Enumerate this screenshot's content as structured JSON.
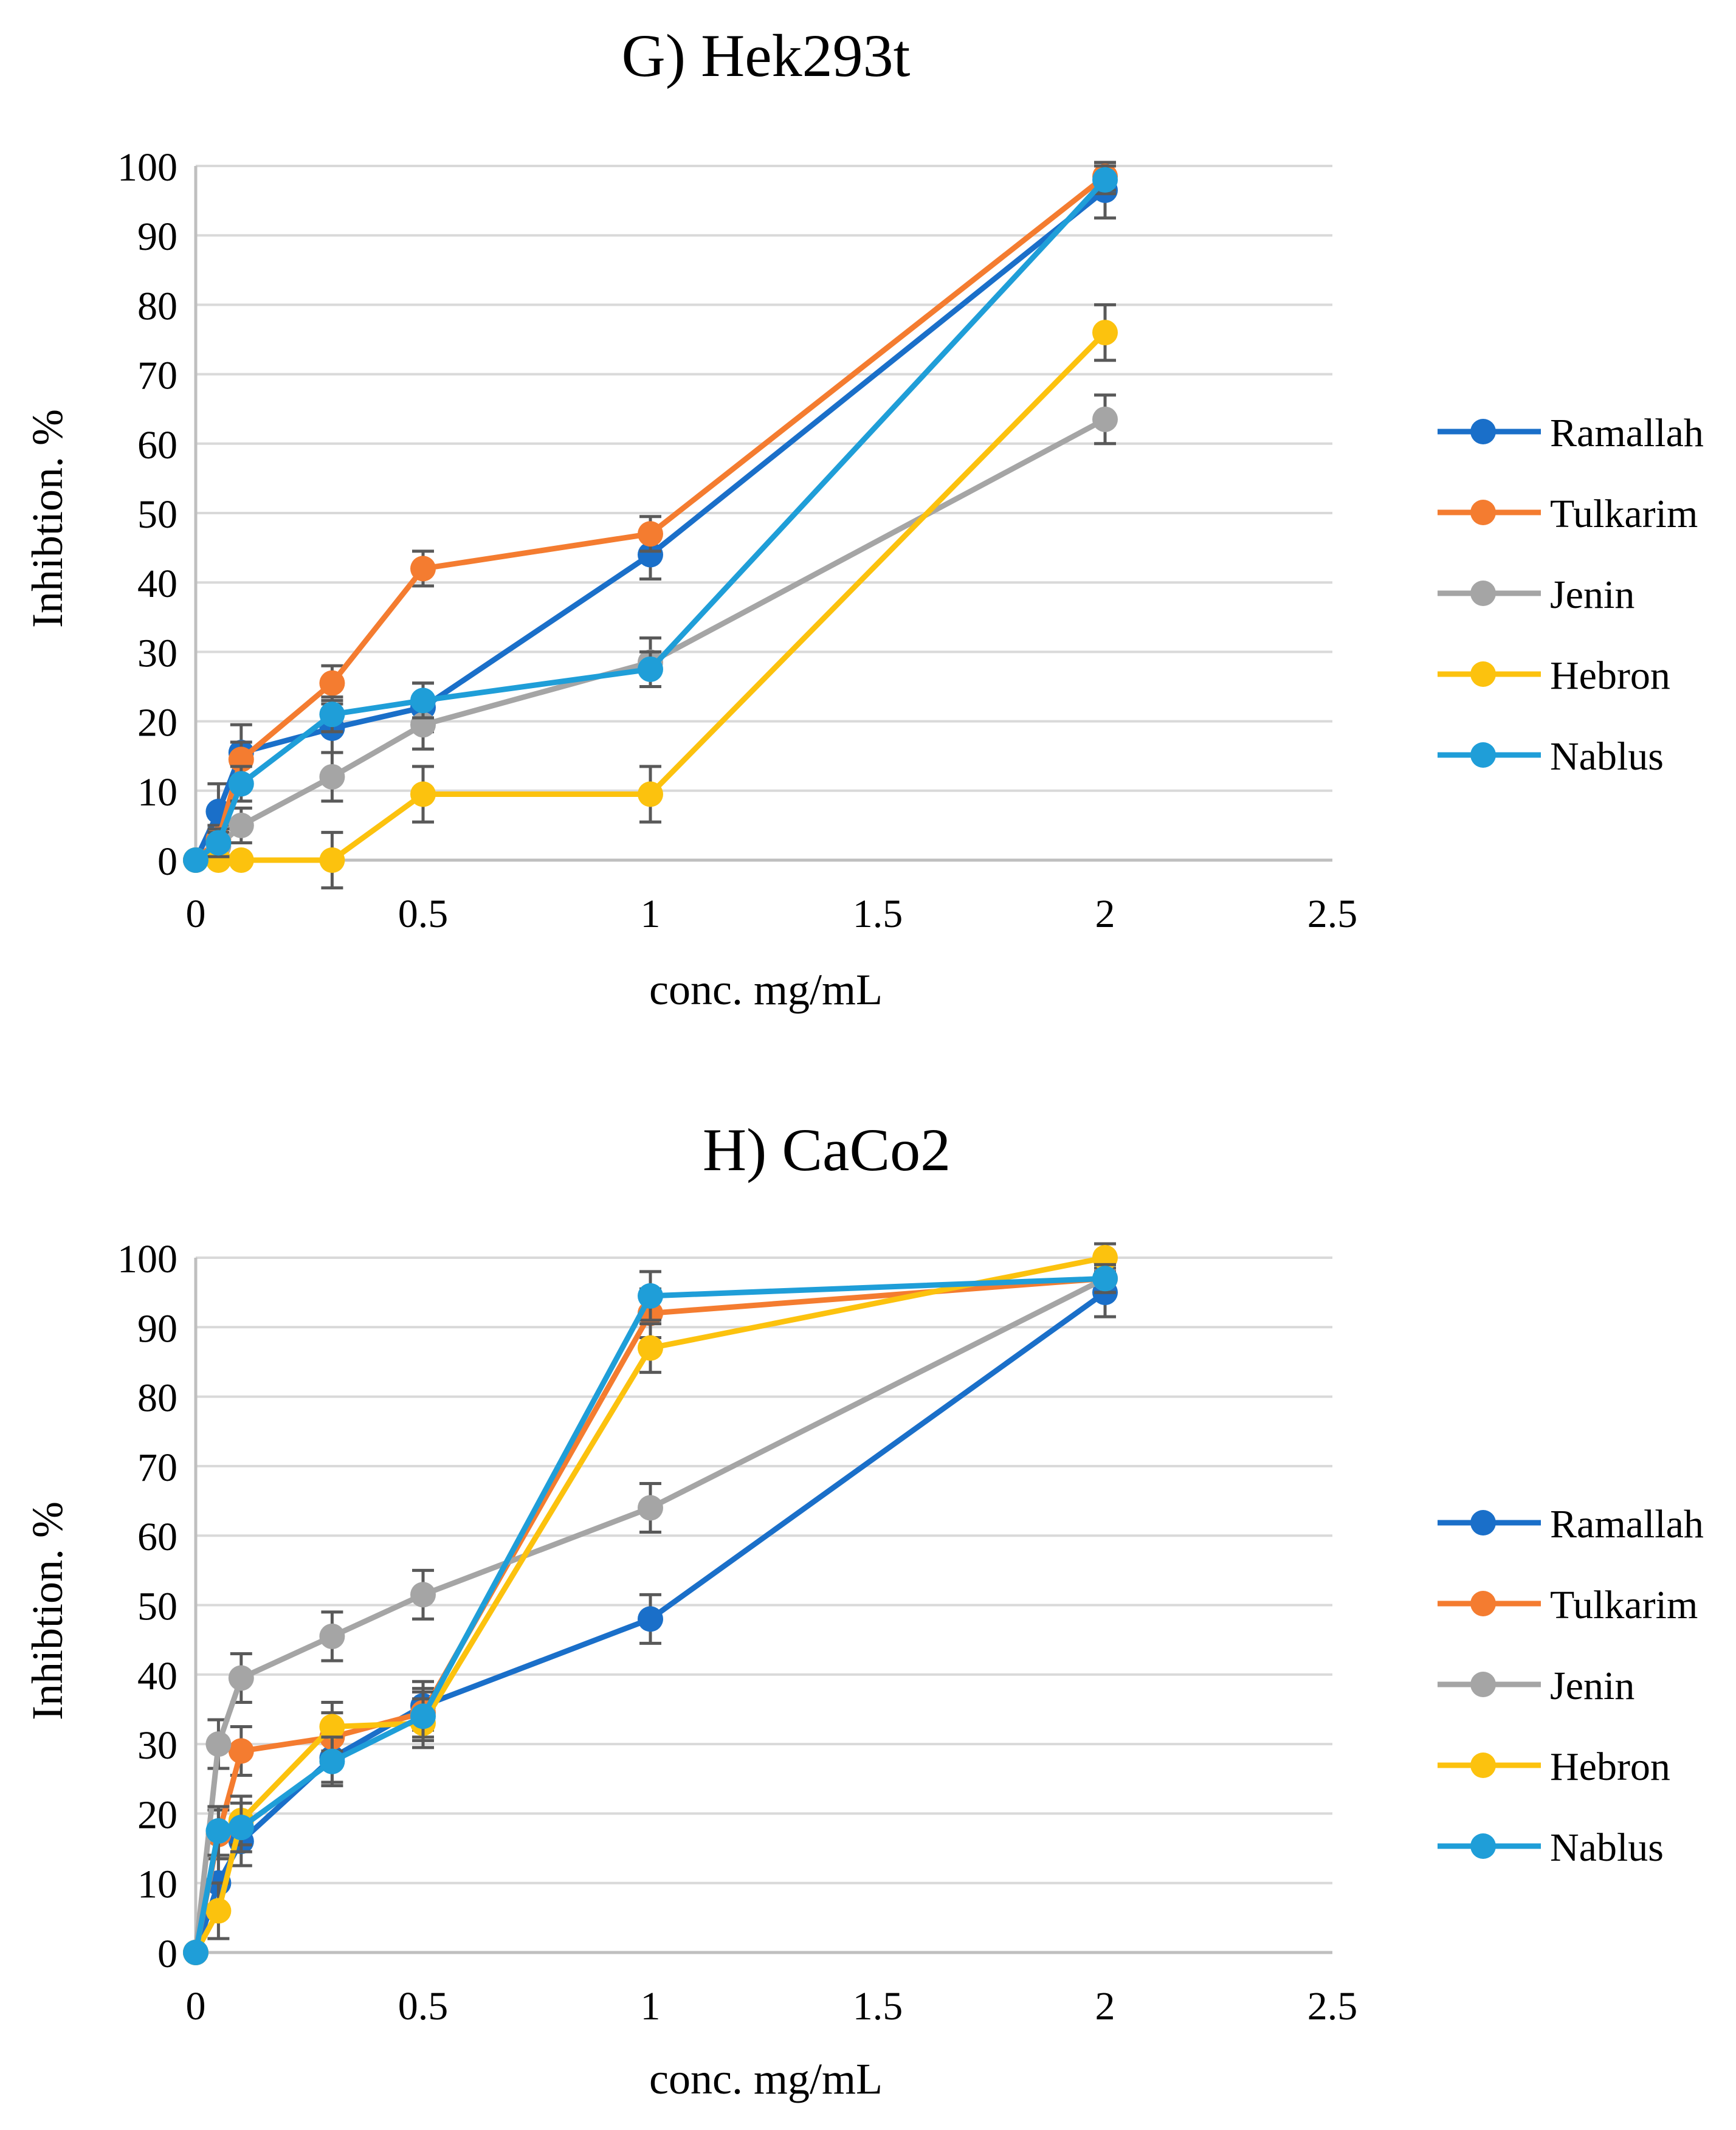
{
  "colors": {
    "Ramallah": "#1a6fc9",
    "Tulkarim": "#f47c30",
    "Jenin": "#a5a5a5",
    "Hebron": "#fcc20e",
    "Nablus": "#1f9ed8",
    "grid": "#d9d9d9",
    "axis": "#bfbfbf",
    "errorbar": "#595959"
  },
  "chart_data": [
    {
      "type": "line",
      "title": "G) Hek293t",
      "xlabel": "conc. mg/mL",
      "ylabel": "Inhibtion. %",
      "xlim": [
        0,
        2.5
      ],
      "ylim": [
        0,
        100
      ],
      "xticks": [
        "0",
        "0.5",
        "1",
        "1.5",
        "2",
        "2.5"
      ],
      "yticks": [
        "0",
        "10",
        "20",
        "30",
        "40",
        "50",
        "60",
        "70",
        "80",
        "90",
        "100"
      ],
      "grid": true,
      "legend_position": "right",
      "x": [
        0,
        0.05,
        0.1,
        0.3,
        0.5,
        1,
        2
      ],
      "series": [
        {
          "name": "Ramallah",
          "values": [
            0,
            7,
            15.5,
            19,
            22,
            44,
            96.5
          ],
          "errors": [
            0,
            4,
            4,
            3.5,
            3.5,
            3.5,
            4
          ]
        },
        {
          "name": "Tulkarim",
          "values": [
            0,
            3,
            14.5,
            25.5,
            42,
            47,
            98.5
          ],
          "errors": [
            0,
            2,
            2.5,
            2.5,
            2.5,
            2.5,
            2
          ]
        },
        {
          "name": "Jenin",
          "values": [
            0,
            2,
            5,
            12,
            19.5,
            28.5,
            63.5
          ],
          "errors": [
            0,
            2,
            2.5,
            3.5,
            3.5,
            3.5,
            3.5
          ]
        },
        {
          "name": "Hebron",
          "values": [
            0,
            0,
            0,
            0,
            9.5,
            9.5,
            76
          ],
          "errors": [
            0,
            0,
            0,
            4,
            4,
            4,
            4
          ]
        },
        {
          "name": "Nablus",
          "values": [
            0,
            2.5,
            11,
            21,
            23,
            27.5,
            98
          ],
          "errors": [
            0,
            2,
            2.5,
            2.5,
            2.5,
            2.5,
            2
          ]
        }
      ]
    },
    {
      "type": "line",
      "title": "H) CaCo2",
      "xlabel": "conc. mg/mL",
      "ylabel": "Inhibtion. %",
      "xlim": [
        0,
        2.5
      ],
      "ylim": [
        0,
        100
      ],
      "xticks": [
        "0",
        "0.5",
        "1",
        "1.5",
        "2",
        "2.5"
      ],
      "yticks": [
        "0",
        "10",
        "20",
        "30",
        "40",
        "50",
        "60",
        "70",
        "80",
        "90",
        "100"
      ],
      "grid": true,
      "legend_position": "right",
      "x": [
        0,
        0.05,
        0.1,
        0.3,
        0.5,
        1,
        2
      ],
      "series": [
        {
          "name": "Ramallah",
          "values": [
            0,
            10,
            16,
            28,
            35.5,
            48,
            95
          ],
          "errors": [
            0,
            3.5,
            3.5,
            3.5,
            3.5,
            3.5,
            3.5
          ]
        },
        {
          "name": "Tulkarim",
          "values": [
            0,
            17,
            29,
            31,
            34.5,
            92,
            97
          ],
          "errors": [
            0,
            3.5,
            3.5,
            3.5,
            3.5,
            3.5,
            2
          ]
        },
        {
          "name": "Jenin",
          "values": [
            0,
            30,
            39.5,
            45.5,
            51.5,
            64,
            97
          ],
          "errors": [
            0,
            3.5,
            3.5,
            3.5,
            3.5,
            3.5,
            2
          ]
        },
        {
          "name": "Hebron",
          "values": [
            0,
            6,
            19,
            32.5,
            33,
            87,
            100
          ],
          "errors": [
            0,
            4,
            3.5,
            3.5,
            3.5,
            3.5,
            2
          ]
        },
        {
          "name": "Nablus",
          "values": [
            0,
            17.5,
            18,
            27.5,
            34,
            94.5,
            97
          ],
          "errors": [
            0,
            3.5,
            3.5,
            3.5,
            3.5,
            3.5,
            2
          ]
        }
      ]
    }
  ]
}
